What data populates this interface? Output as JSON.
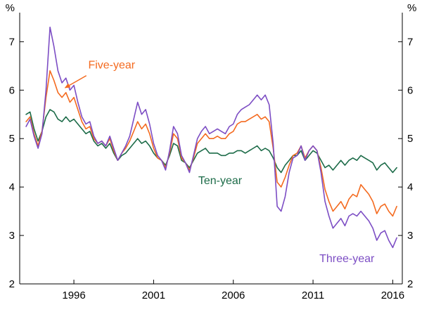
{
  "chart_data": {
    "type": "line",
    "title": "",
    "unit_left": "%",
    "unit_right": "%",
    "x_range": [
      1992.6,
      2016.6
    ],
    "y_range": [
      2,
      7.6
    ],
    "x_ticks": [
      1996,
      2001,
      2006,
      2011,
      2016
    ],
    "y_ticks": [
      2,
      3,
      4,
      5,
      6,
      7
    ],
    "grid": false,
    "legend_position": "inline-annotations",
    "x": [
      1993,
      1993.25,
      1993.5,
      1993.75,
      1994,
      1994.25,
      1994.5,
      1994.75,
      1995,
      1995.25,
      1995.5,
      1995.75,
      1996,
      1996.25,
      1996.5,
      1996.75,
      1997,
      1997.25,
      1997.5,
      1997.75,
      1998,
      1998.25,
      1998.5,
      1998.75,
      1999,
      1999.25,
      1999.5,
      1999.75,
      2000,
      2000.25,
      2000.5,
      2000.75,
      2001,
      2001.25,
      2001.5,
      2001.75,
      2002,
      2002.25,
      2002.5,
      2002.75,
      2003,
      2003.25,
      2003.5,
      2003.75,
      2004,
      2004.25,
      2004.5,
      2004.75,
      2005,
      2005.25,
      2005.5,
      2005.75,
      2006,
      2006.25,
      2006.5,
      2006.75,
      2007,
      2007.25,
      2007.5,
      2007.75,
      2008,
      2008.25,
      2008.5,
      2008.75,
      2009,
      2009.25,
      2009.5,
      2009.75,
      2010,
      2010.25,
      2010.5,
      2010.75,
      2011,
      2011.25,
      2011.5,
      2011.75,
      2012,
      2012.25,
      2012.5,
      2012.75,
      2013,
      2013.25,
      2013.5,
      2013.75,
      2014,
      2014.25,
      2014.5,
      2014.75,
      2015,
      2015.25,
      2015.5,
      2015.75,
      2016,
      2016.25
    ],
    "series": [
      {
        "name": "Ten-year",
        "color": "#1c6b48",
        "values": [
          5.5,
          5.55,
          5.2,
          4.95,
          5.15,
          5.45,
          5.6,
          5.55,
          5.4,
          5.35,
          5.45,
          5.35,
          5.4,
          5.3,
          5.2,
          5.1,
          5.15,
          4.95,
          4.85,
          4.9,
          4.8,
          4.9,
          4.7,
          4.55,
          4.65,
          4.7,
          4.8,
          4.9,
          5.0,
          4.9,
          4.95,
          4.85,
          4.7,
          4.6,
          4.55,
          4.45,
          4.65,
          4.9,
          4.85,
          4.55,
          4.5,
          4.4,
          4.55,
          4.7,
          4.75,
          4.8,
          4.7,
          4.7,
          4.7,
          4.65,
          4.65,
          4.7,
          4.7,
          4.75,
          4.75,
          4.7,
          4.75,
          4.8,
          4.85,
          4.75,
          4.8,
          4.75,
          4.6,
          4.4,
          4.3,
          4.45,
          4.55,
          4.65,
          4.65,
          4.75,
          4.55,
          4.65,
          4.75,
          4.7,
          4.55,
          4.4,
          4.45,
          4.35,
          4.45,
          4.55,
          4.45,
          4.55,
          4.6,
          4.55,
          4.65,
          4.6,
          4.55,
          4.5,
          4.35,
          4.45,
          4.5,
          4.4,
          4.3,
          4.4
        ]
      },
      {
        "name": "Five-year",
        "color": "#f46a1f",
        "values": [
          5.35,
          5.45,
          5.1,
          4.85,
          5.15,
          5.85,
          6.4,
          6.2,
          5.95,
          5.85,
          5.95,
          5.75,
          5.85,
          5.6,
          5.35,
          5.2,
          5.25,
          5.0,
          4.9,
          4.95,
          4.85,
          5.0,
          4.75,
          4.55,
          4.7,
          4.8,
          4.95,
          5.15,
          5.35,
          5.2,
          5.3,
          5.1,
          4.8,
          4.6,
          4.55,
          4.4,
          4.7,
          5.1,
          5.0,
          4.6,
          4.5,
          4.35,
          4.6,
          4.9,
          5.0,
          5.1,
          5.0,
          5.0,
          5.05,
          5.0,
          5.0,
          5.1,
          5.15,
          5.3,
          5.35,
          5.35,
          5.4,
          5.45,
          5.5,
          5.4,
          5.45,
          5.35,
          4.8,
          4.1,
          4.0,
          4.2,
          4.45,
          4.65,
          4.7,
          4.85,
          4.6,
          4.75,
          4.85,
          4.75,
          4.4,
          3.95,
          3.7,
          3.5,
          3.6,
          3.7,
          3.55,
          3.75,
          3.85,
          3.8,
          4.05,
          3.95,
          3.85,
          3.7,
          3.45,
          3.6,
          3.65,
          3.5,
          3.4,
          3.6
        ]
      },
      {
        "name": "Three-year",
        "color": "#7c4dc4",
        "values": [
          5.25,
          5.4,
          5.05,
          4.8,
          5.1,
          6.0,
          7.3,
          6.9,
          6.4,
          6.15,
          6.25,
          6.0,
          6.1,
          5.75,
          5.45,
          5.3,
          5.35,
          5.05,
          4.9,
          4.95,
          4.85,
          5.05,
          4.8,
          4.55,
          4.7,
          4.85,
          5.05,
          5.4,
          5.75,
          5.5,
          5.6,
          5.3,
          4.9,
          4.65,
          4.55,
          4.35,
          4.75,
          5.25,
          5.1,
          4.65,
          4.5,
          4.3,
          4.65,
          5.0,
          5.15,
          5.25,
          5.1,
          5.15,
          5.2,
          5.15,
          5.1,
          5.25,
          5.3,
          5.5,
          5.6,
          5.65,
          5.7,
          5.8,
          5.9,
          5.8,
          5.9,
          5.7,
          4.9,
          3.6,
          3.5,
          3.8,
          4.3,
          4.6,
          4.65,
          4.85,
          4.55,
          4.75,
          4.85,
          4.75,
          4.3,
          3.7,
          3.4,
          3.15,
          3.25,
          3.35,
          3.2,
          3.4,
          3.45,
          3.4,
          3.5,
          3.4,
          3.3,
          3.15,
          2.9,
          3.05,
          3.1,
          2.9,
          2.75,
          2.95
        ]
      }
    ],
    "annotations": [
      {
        "id": "five-year",
        "text": "Five-year",
        "color": "#f46a1f",
        "x": 1996.9,
        "y": 6.45,
        "anchor": "start"
      },
      {
        "id": "ten-year",
        "text": "Ten-year",
        "color": "#1c6b48",
        "x": 2003.8,
        "y": 4.06,
        "anchor": "start"
      },
      {
        "id": "three-year",
        "text": "Three-year",
        "color": "#7c4dc4",
        "x": 2011.4,
        "y": 2.45,
        "anchor": "start"
      }
    ],
    "arrow": {
      "from_x": 1996.78,
      "from_y": 6.3,
      "to_x": 1995.45,
      "to_y": 6.05,
      "color": "#f46a1f"
    }
  }
}
